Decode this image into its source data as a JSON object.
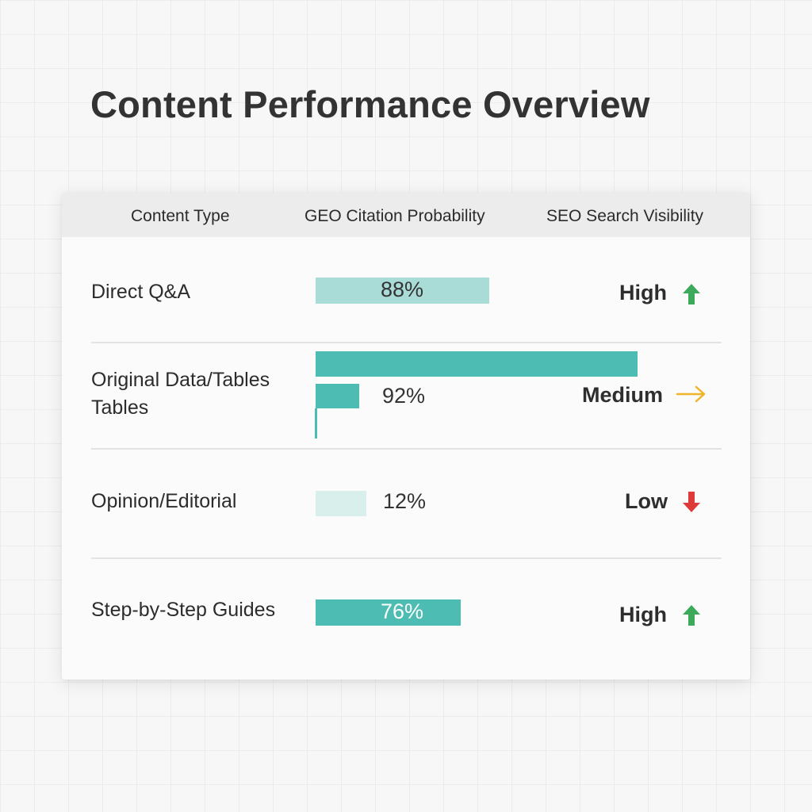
{
  "page": {
    "title": "Content Performance Overview"
  },
  "colors": {
    "bar_strong": "#4dbdb3",
    "bar_light": "#a9dcd6",
    "bar_faint": "#d8efec",
    "up_arrow": "#3caa5a",
    "right_arrow": "#f0b429",
    "down_arrow": "#de3a3a"
  },
  "table": {
    "headers": {
      "content_type": "Content Type",
      "geo_citation": "GEO Citation Probability",
      "seo_visibility": "SEO Search Visibility"
    },
    "rows": [
      {
        "content_type": "Direct Q&A",
        "geo_citation": "88%",
        "geo_value": 88,
        "seo_visibility": "High",
        "trend_icon": "arrow-up-icon"
      },
      {
        "content_type_line1": "Original Data/Tables",
        "content_type_line2": "Tables",
        "geo_citation": "92%",
        "geo_value": 92,
        "seo_visibility": "Medium",
        "trend_icon": "arrow-right-icon"
      },
      {
        "content_type": "Opinion/Editorial",
        "geo_citation": "12%",
        "geo_value": 12,
        "seo_visibility": "Low",
        "trend_icon": "arrow-down-icon"
      },
      {
        "content_type": "Step-by-Step Guides",
        "geo_citation": "76%",
        "geo_value": 76,
        "seo_visibility": "High",
        "trend_icon": "arrow-up-icon"
      }
    ]
  }
}
